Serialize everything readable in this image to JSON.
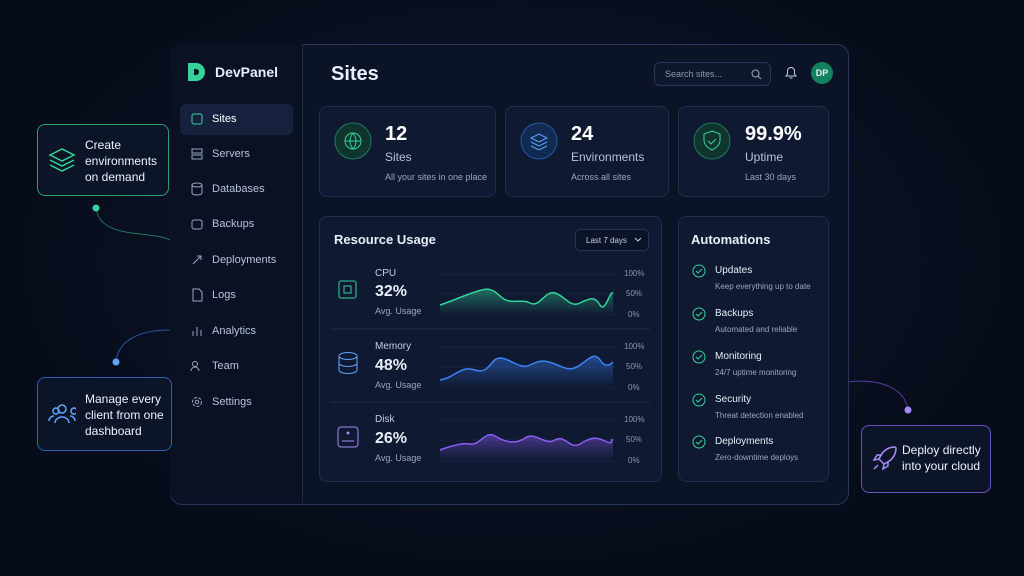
{
  "brand": "DevPanel",
  "nav": [
    "Sites",
    "Servers",
    "Databases",
    "Backups",
    "Deployments",
    "Logs",
    "Analytics",
    "Team",
    "Settings"
  ],
  "header": {
    "title": "Sites",
    "search_placeholder": "Search sites...",
    "avatar": "DP"
  },
  "stats": [
    {
      "value": "12",
      "label": "Sites",
      "note": "All your sites in one place"
    },
    {
      "value": "24",
      "label": "Environments",
      "note": "Across all sites"
    },
    {
      "value": "99.9%",
      "label": "Uptime",
      "note": "Last 30 days"
    }
  ],
  "resource_usage": {
    "title": "Resource Usage",
    "range": "Last 7 days",
    "axis": [
      "100%",
      "50%",
      "0%"
    ],
    "rows": [
      {
        "name": "CPU",
        "value": "32%",
        "caption": "Avg. Usage"
      },
      {
        "name": "Memory",
        "value": "48%",
        "caption": "Avg. Usage"
      },
      {
        "name": "Disk",
        "value": "26%",
        "caption": "Avg. Usage"
      }
    ]
  },
  "automations": {
    "title": "Automations",
    "items": [
      {
        "name": "Updates",
        "desc": "Keep everything up to date"
      },
      {
        "name": "Backups",
        "desc": "Automated and reliable"
      },
      {
        "name": "Monitoring",
        "desc": "24/7 uptime monitoring"
      },
      {
        "name": "Security",
        "desc": "Threat detection enabled"
      },
      {
        "name": "Deployments",
        "desc": "Zero-downtime deploys"
      }
    ]
  },
  "callouts": [
    "Create environments on demand",
    "Manage every client from one dashboard",
    "Deploy directly into your cloud"
  ]
}
